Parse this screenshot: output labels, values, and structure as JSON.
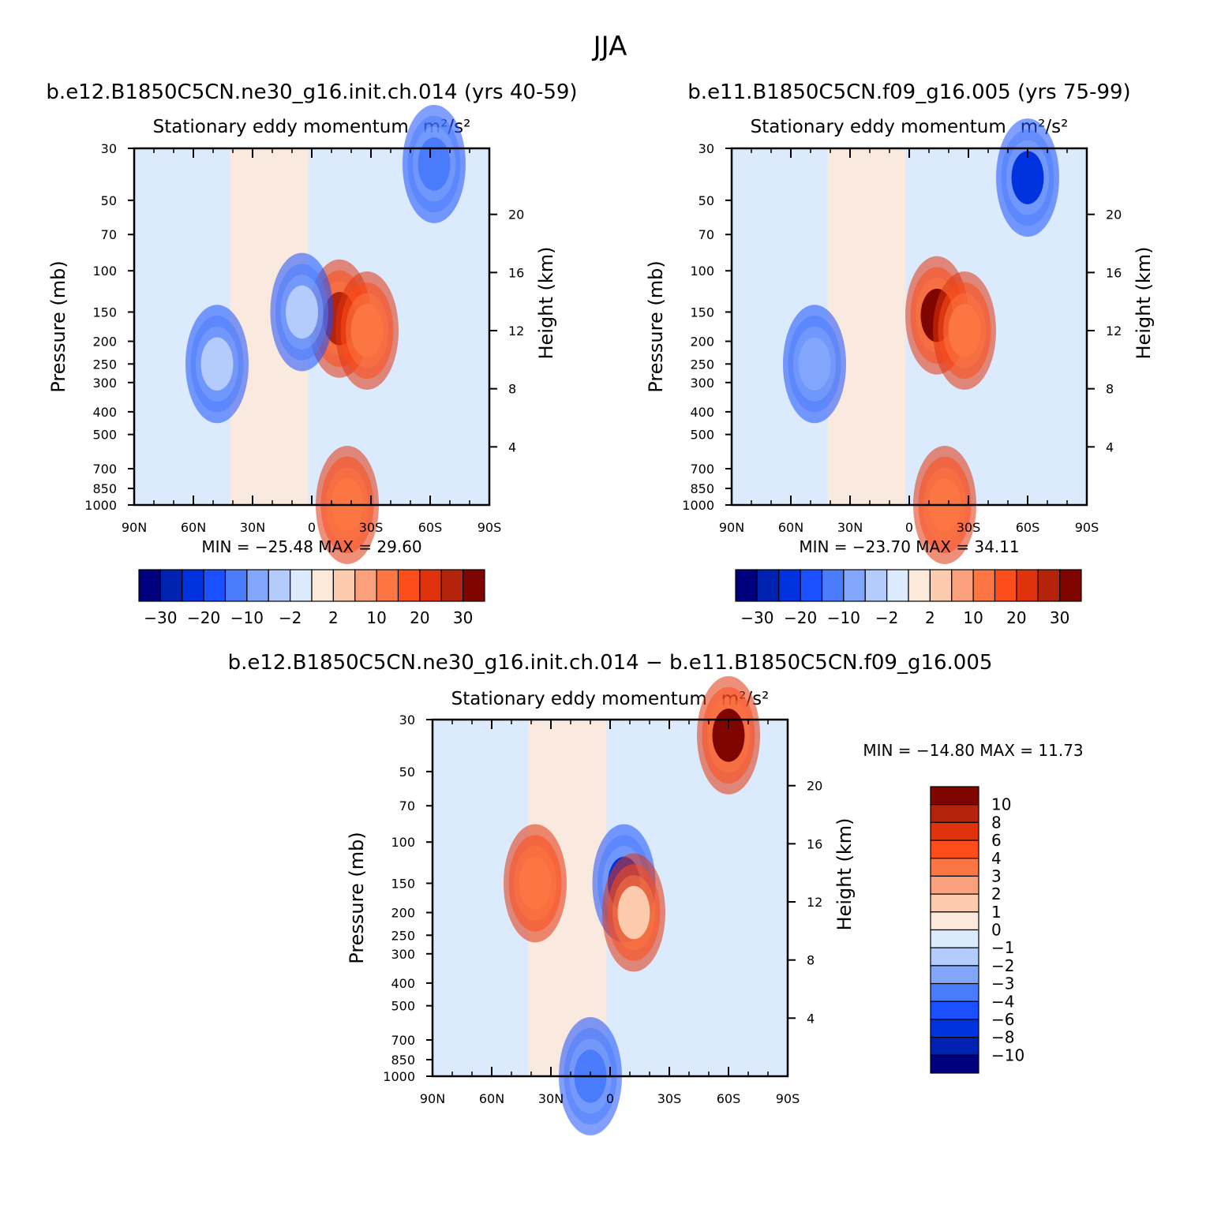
{
  "figure_title": "JJA",
  "chart_data": [
    {
      "type": "heatmap",
      "panel_title": "b.e12.B1850C5CN.ne30_g16.init.ch.014 (yrs 40-59)",
      "subtitle": "Stationary eddy momentum",
      "units": "m²/s²",
      "ylabel": "Pressure (mb)",
      "y2label": "Height (km)",
      "x_ticks": [
        "90N",
        "60N",
        "30N",
        "0",
        "30S",
        "60S",
        "90S"
      ],
      "y_ticks": [
        "30",
        "50",
        "70",
        "100",
        "150",
        "200",
        "250",
        "300",
        "400",
        "500",
        "700",
        "850",
        "1000"
      ],
      "y2_ticks": [
        "20",
        "16",
        "12",
        "8",
        "4"
      ],
      "ylim": [
        1000,
        30
      ],
      "y_scale": "log",
      "min_text": "MIN = −25.48   MAX =   29.60",
      "min": -25.48,
      "max": 29.6,
      "colorbar_ticks": [
        "−30",
        "−20",
        "−10",
        "−2",
        "2",
        "10",
        "20",
        "30"
      ],
      "colorbar_orientation": "horizontal",
      "features": [
        {
          "x": 14,
          "p": 160,
          "value": 29.6
        },
        {
          "x": -5,
          "p": 150,
          "value": -2
        },
        {
          "x": 28,
          "p": 180,
          "value": 12
        },
        {
          "x": 62,
          "p": 35,
          "value": -10
        },
        {
          "x": -48,
          "p": 250,
          "value": -4
        },
        {
          "x": 18,
          "p": 1000,
          "value": 15
        }
      ]
    },
    {
      "type": "heatmap",
      "panel_title": "b.e11.B1850C5CN.f09_g16.005 (yrs 75-99)",
      "subtitle": "Stationary eddy momentum",
      "units": "m²/s²",
      "ylabel": "Pressure (mb)",
      "y2label": "Height (km)",
      "x_ticks": [
        "90N",
        "60N",
        "30N",
        "0",
        "30S",
        "60S",
        "90S"
      ],
      "y_ticks": [
        "30",
        "50",
        "70",
        "100",
        "150",
        "200",
        "250",
        "300",
        "400",
        "500",
        "700",
        "850",
        "1000"
      ],
      "y2_ticks": [
        "20",
        "16",
        "12",
        "8",
        "4"
      ],
      "ylim": [
        1000,
        30
      ],
      "y_scale": "log",
      "min_text": "MIN = −23.70   MAX =   34.11",
      "min": -23.7,
      "max": 34.11,
      "colorbar_ticks": [
        "−30",
        "−20",
        "−10",
        "−2",
        "2",
        "10",
        "20",
        "30"
      ],
      "colorbar_orientation": "horizontal",
      "features": [
        {
          "x": 14,
          "p": 155,
          "value": 34.11
        },
        {
          "x": 28,
          "p": 180,
          "value": 14
        },
        {
          "x": 60,
          "p": 40,
          "value": -20
        },
        {
          "x": -48,
          "p": 250,
          "value": -5
        },
        {
          "x": 18,
          "p": 1000,
          "value": 15
        }
      ]
    },
    {
      "type": "heatmap",
      "panel_title": "b.e12.B1850C5CN.ne30_g16.init.ch.014 − b.e11.B1850C5CN.f09_g16.005",
      "subtitle": "Stationary eddy momentum",
      "units": "m²/s²",
      "ylabel": "Pressure (mb)",
      "y2label": "Height (km)",
      "x_ticks": [
        "90N",
        "60N",
        "30N",
        "0",
        "30S",
        "60S",
        "90S"
      ],
      "y_ticks": [
        "30",
        "50",
        "70",
        "100",
        "150",
        "200",
        "250",
        "300",
        "400",
        "500",
        "700",
        "850",
        "1000"
      ],
      "y2_ticks": [
        "20",
        "16",
        "12",
        "8",
        "4"
      ],
      "ylim": [
        1000,
        30
      ],
      "y_scale": "log",
      "min_text": "MIN = −14.80   MAX =   11.73",
      "min": -14.8,
      "max": 11.73,
      "colorbar_ticks": [
        "10",
        "8",
        "6",
        "4",
        "3",
        "2",
        "1",
        "0",
        "−1",
        "−2",
        "−3",
        "−4",
        "−6",
        "−8",
        "−10"
      ],
      "colorbar_orientation": "vertical",
      "features": [
        {
          "x": -38,
          "p": 150,
          "value": 4
        },
        {
          "x": 7,
          "p": 150,
          "value": -6
        },
        {
          "x": 12,
          "p": 200,
          "value": 2
        },
        {
          "x": 60,
          "p": 35,
          "value": 11.73
        },
        {
          "x": -10,
          "p": 1000,
          "value": -3
        }
      ]
    }
  ],
  "colors": {
    "axis": "#000000",
    "background": "#ffffff",
    "palette_diverging_16": [
      "#00007f",
      "#0022b0",
      "#0033df",
      "#1a50ff",
      "#4a7bfb",
      "#81a6fb",
      "#b4ccfc",
      "#dbeafc",
      "#fde9da",
      "#fccaad",
      "#fba07d",
      "#fb7642",
      "#fd4d1a",
      "#e0330d",
      "#b4230c",
      "#7e0500"
    ],
    "palette_diff_16": [
      "#00007f",
      "#0022b0",
      "#0033df",
      "#1a50ff",
      "#4a7bfb",
      "#81a6fb",
      "#b4ccfc",
      "#dbeafc",
      "#fde9da",
      "#fccaad",
      "#fba07d",
      "#fb7642",
      "#fd4d1a",
      "#e0330d",
      "#b4230c",
      "#7e0500"
    ]
  }
}
